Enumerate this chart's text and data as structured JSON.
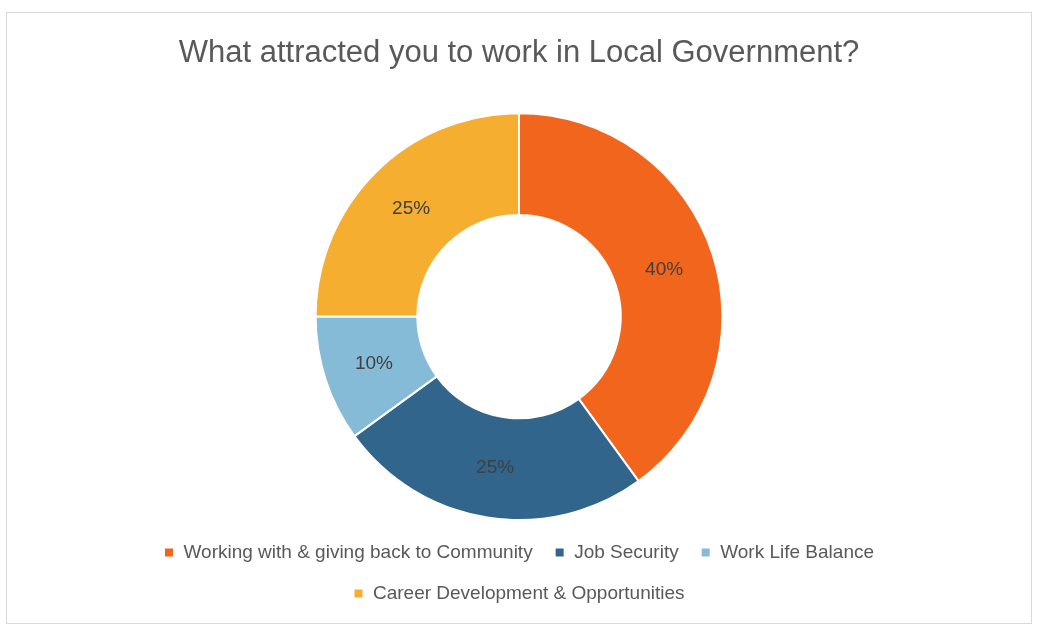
{
  "chart_data": {
    "type": "donut",
    "title": "What attracted you to work in Local Government?",
    "categories": [
      "Working with & giving back to Community",
      "Job Security",
      "Work Life Balance",
      "Career Development & Opportunities"
    ],
    "values": [
      40,
      25,
      10,
      25
    ],
    "colors": [
      "#f1651d",
      "#31658c",
      "#86bbd8",
      "#f5ae30"
    ],
    "value_labels": [
      "40%",
      "25%",
      "10%",
      "25%"
    ],
    "legend": "bottom"
  }
}
